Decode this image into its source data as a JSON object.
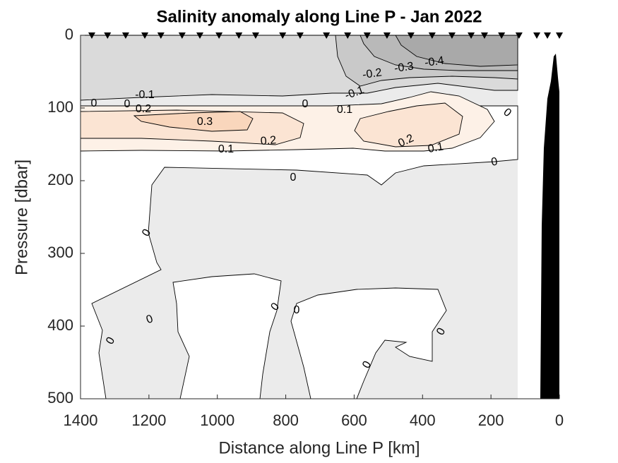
{
  "chart_data": {
    "type": "contour",
    "title": "Salinity anomaly along Line P - Jan 2022",
    "xlabel": "Distance along Line P [km]",
    "ylabel": "Pressure [dbar]",
    "xlim": [
      1400,
      0
    ],
    "ylim": [
      0,
      500
    ],
    "yreverse": true,
    "xticks": [
      1400,
      1200,
      1000,
      800,
      600,
      400,
      200,
      0
    ],
    "yticks": [
      0,
      100,
      200,
      300,
      400,
      500
    ],
    "stations": [
      1367,
      1321,
      1268,
      1212,
      1165,
      1103,
      1051,
      995,
      937,
      888,
      809,
      758,
      681,
      619,
      562,
      504,
      434,
      372,
      314,
      258,
      219,
      169,
      118,
      66,
      35,
      0
    ],
    "levels": [
      -0.4,
      -0.3,
      -0.2,
      -0.1,
      0,
      0.1,
      0.2,
      0.3
    ],
    "contour_labels": [
      -0.4,
      -0.3,
      -0.2,
      -0.1,
      -0.1,
      0,
      0,
      0.2,
      0,
      0.1,
      0.3,
      0.2,
      0.1,
      0.2,
      0.1,
      0,
      0,
      0,
      0,
      0,
      0,
      0,
      0,
      0,
      0
    ]
  }
}
